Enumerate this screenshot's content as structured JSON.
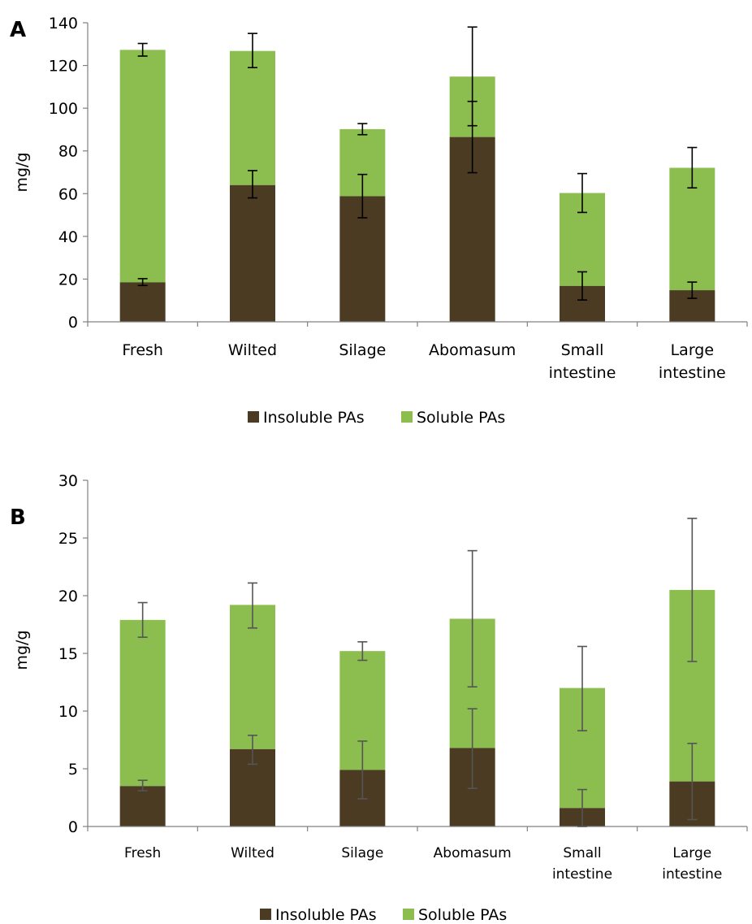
{
  "colors": {
    "insoluble": "#4b3b22",
    "soluble": "#8cbd4f",
    "errA": "#000000",
    "errB": "#555555"
  },
  "chart_data": [
    {
      "panel": "A",
      "type": "bar",
      "stacked": true,
      "ylabel": "mg/g",
      "ylim": [
        0,
        140
      ],
      "yticks": [
        0,
        20,
        40,
        60,
        80,
        100,
        120,
        140
      ],
      "categories": [
        [
          "Fresh"
        ],
        [
          "Wilted"
        ],
        [
          "Silage"
        ],
        [
          "Abomasum"
        ],
        [
          "Small",
          "intestine"
        ],
        [
          "Large",
          "intestine"
        ]
      ],
      "series": [
        {
          "name": "Insoluble PAs",
          "values": [
            18.5,
            64,
            58.8,
            86.5,
            16.8,
            14.8
          ],
          "err_lo": [
            17,
            58,
            48.7,
            69.8,
            10.2,
            11
          ],
          "err_hi": [
            20.2,
            70.8,
            69,
            103.2,
            23.4,
            18.6
          ]
        },
        {
          "name": "Soluble PAs",
          "values": [
            108.8,
            62.8,
            31.4,
            28.3,
            43.5,
            57.3
          ],
          "totals": [
            127.3,
            126.8,
            90.2,
            114.8,
            60.3,
            72.1
          ],
          "err_lo": [
            124.4,
            119,
            87.6,
            91.8,
            51.2,
            62.7
          ],
          "err_hi": [
            130.3,
            135,
            92.8,
            138,
            69.4,
            81.6
          ]
        }
      ],
      "legend": {
        "placement": "bottom",
        "entries": [
          "Insoluble PAs",
          "Soluble PAs"
        ]
      }
    },
    {
      "panel": "B",
      "type": "bar",
      "stacked": true,
      "ylabel": "mg/g",
      "ylim": [
        0,
        30
      ],
      "yticks": [
        0,
        5,
        10,
        15,
        20,
        25,
        30
      ],
      "categories": [
        [
          "Fresh"
        ],
        [
          "Wilted"
        ],
        [
          "Silage"
        ],
        [
          "Abomasum"
        ],
        [
          "Small",
          "intestine"
        ],
        [
          "Large",
          "intestine"
        ]
      ],
      "series": [
        {
          "name": "Insoluble PAs",
          "values": [
            3.5,
            6.7,
            4.9,
            6.8,
            1.6,
            3.9
          ],
          "err_lo": [
            3.1,
            5.4,
            2.4,
            3.3,
            0,
            0.6
          ],
          "err_hi": [
            4,
            7.9,
            7.4,
            10.2,
            3.2,
            7.2
          ]
        },
        {
          "name": "Soluble PAs",
          "values": [
            14.4,
            12.5,
            10.3,
            11.2,
            10.4,
            16.6
          ],
          "totals": [
            17.9,
            19.2,
            15.2,
            18,
            12,
            20.5
          ],
          "err_lo": [
            16.4,
            17.2,
            14.4,
            12.1,
            8.3,
            14.3
          ],
          "err_hi": [
            19.4,
            21.1,
            16,
            23.9,
            15.6,
            26.7
          ]
        }
      ],
      "legend": {
        "placement": "bottom",
        "entries": [
          "Insoluble PAs",
          "Soluble PAs"
        ]
      }
    }
  ]
}
